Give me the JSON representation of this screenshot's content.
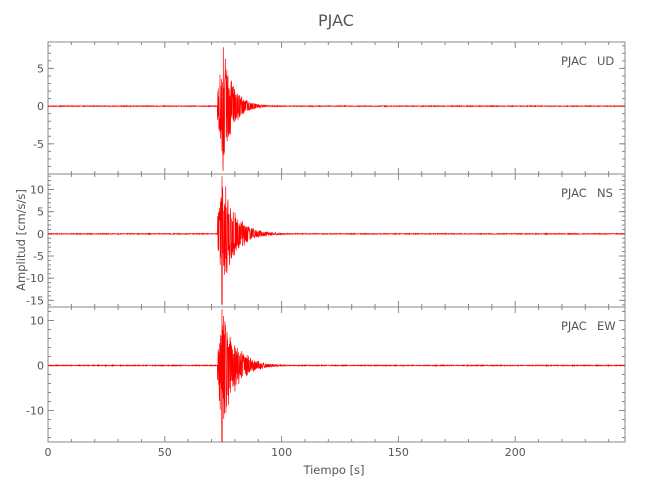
{
  "chart_data": {
    "type": "line",
    "title": "PJAC",
    "xlabel": "Tiempo [s]",
    "ylabel": "Amplitud [cm/s/s]",
    "xlim": [
      0,
      247
    ],
    "x_ticks": [
      0,
      50,
      100,
      150,
      200
    ],
    "grid": false,
    "line_color": "#ff0000",
    "panels": [
      {
        "station": "PJAC",
        "component": "UD",
        "ylim": [
          -9,
          8.5
        ],
        "y_ticks": [
          -5,
          0,
          5
        ],
        "baseline": 0,
        "onset_time": 72.5,
        "peak_time": 75,
        "peak_max": 7.8,
        "peak_min": -8.6,
        "coda_end_time": 95
      },
      {
        "station": "PJAC",
        "component": "NS",
        "ylim": [
          -16.5,
          13.5
        ],
        "y_ticks": [
          -15,
          -10,
          -5,
          0,
          5,
          10
        ],
        "baseline": 0,
        "onset_time": 72.5,
        "peak_time": 74.5,
        "peak_max": 13,
        "peak_min": -16,
        "coda_end_time": 100
      },
      {
        "station": "PJAC",
        "component": "EW",
        "ylim": [
          -17,
          13
        ],
        "y_ticks": [
          -10,
          0,
          10
        ],
        "baseline": 0,
        "onset_time": 72.5,
        "peak_time": 74.5,
        "peak_max": 12.5,
        "peak_min": -17,
        "coda_end_time": 100
      }
    ]
  }
}
